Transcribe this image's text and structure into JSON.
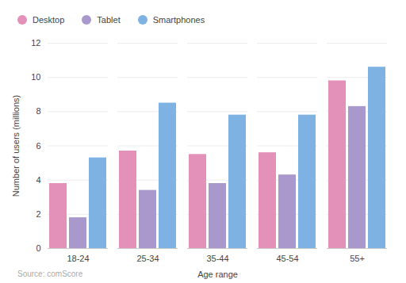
{
  "chart_data": {
    "type": "bar",
    "categories": [
      "18-24",
      "25-34",
      "35-44",
      "45-54",
      "55+"
    ],
    "series": [
      {
        "name": "Desktop",
        "color": "#e391b9",
        "values": [
          3.8,
          5.7,
          5.5,
          5.6,
          9.8
        ]
      },
      {
        "name": "Tablet",
        "color": "#a998cc",
        "values": [
          1.8,
          3.4,
          3.8,
          4.3,
          8.3
        ]
      },
      {
        "name": "Smartphones",
        "color": "#7eb2e2",
        "values": [
          5.3,
          8.5,
          7.8,
          7.8,
          10.6
        ]
      }
    ],
    "x_label": "Age range",
    "y_label": "Number of users (millions)",
    "ylim": [
      0,
      12
    ],
    "yticks": [
      0,
      2,
      4,
      6,
      8,
      10,
      12
    ],
    "grid": true,
    "legend": "top-left",
    "source": "Source: comScore"
  }
}
